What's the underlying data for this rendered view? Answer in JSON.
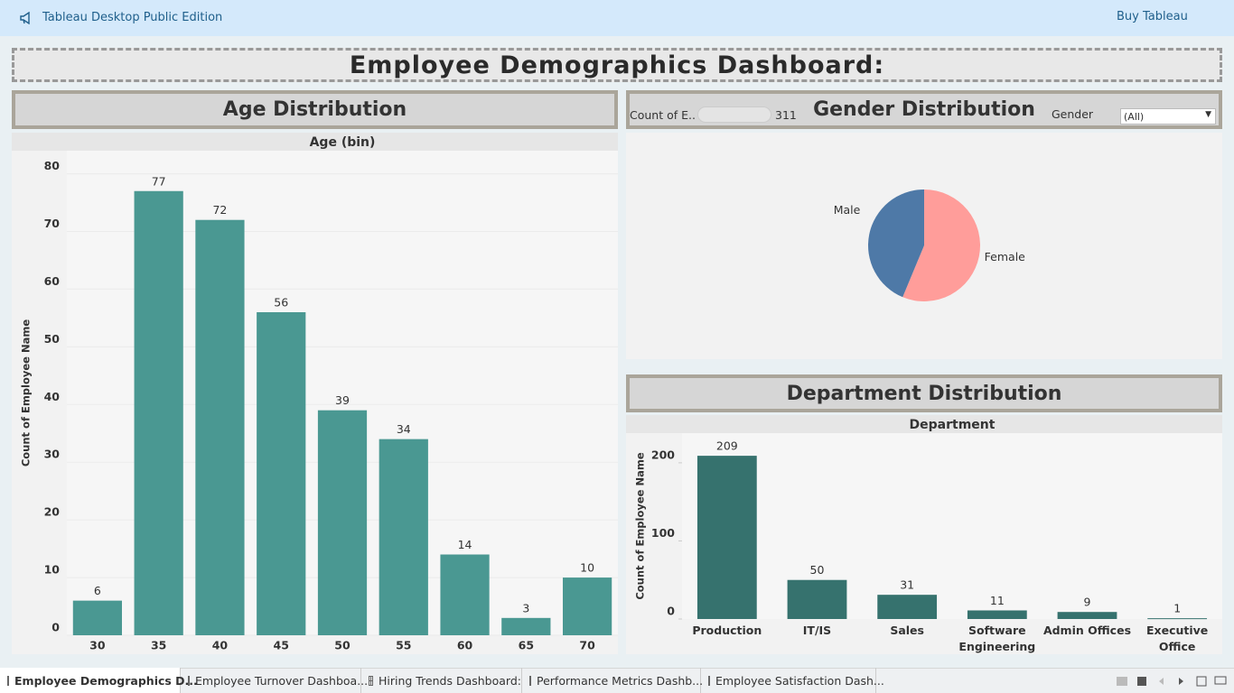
{
  "header": {
    "edition": "Tableau Desktop Public Edition",
    "buy": "Buy Tableau"
  },
  "dashboard_title": "Employee Demographics Dashboard:",
  "chart_data": [
    {
      "type": "bar",
      "title": "Age Distribution",
      "x_label": "Age (bin)",
      "y_label": "Count of Employee Name",
      "categories": [
        "30",
        "35",
        "40",
        "45",
        "50",
        "55",
        "60",
        "65",
        "70"
      ],
      "values": [
        6,
        77,
        72,
        56,
        39,
        34,
        14,
        3,
        10
      ],
      "color": "#4a9892",
      "ylim": [
        0,
        84
      ],
      "yticks": [
        0,
        10,
        20,
        30,
        40,
        50,
        60,
        70,
        80
      ],
      "grid": true
    },
    {
      "type": "pie",
      "title": "Gender Distribution",
      "count_label": "Count of E..",
      "count_value": 311,
      "filter_label": "Gender",
      "filter_value": "(All)",
      "categories": [
        "Female",
        "Male"
      ],
      "values": [
        175,
        136
      ],
      "colors": [
        "#ff9d9a",
        "#4e79a7"
      ]
    },
    {
      "type": "bar",
      "title": "Department Distribution",
      "x_label": "Department",
      "y_label": "Count of Employee Name",
      "categories": [
        "Production",
        "IT/IS",
        "Sales",
        "Software Engineering",
        "Admin Offices",
        "Executive Office"
      ],
      "values": [
        209,
        50,
        31,
        11,
        9,
        1
      ],
      "color": "#36726e",
      "ylim": [
        0,
        238
      ],
      "yticks": [
        0,
        100,
        200
      ],
      "grid": false
    }
  ],
  "tabs": [
    "Employee Demographics D...",
    "Employee Turnover Dashboa...",
    "Hiring Trends Dashboard:",
    "Performance Metrics Dashb...",
    "Employee Satisfaction Dash..."
  ]
}
